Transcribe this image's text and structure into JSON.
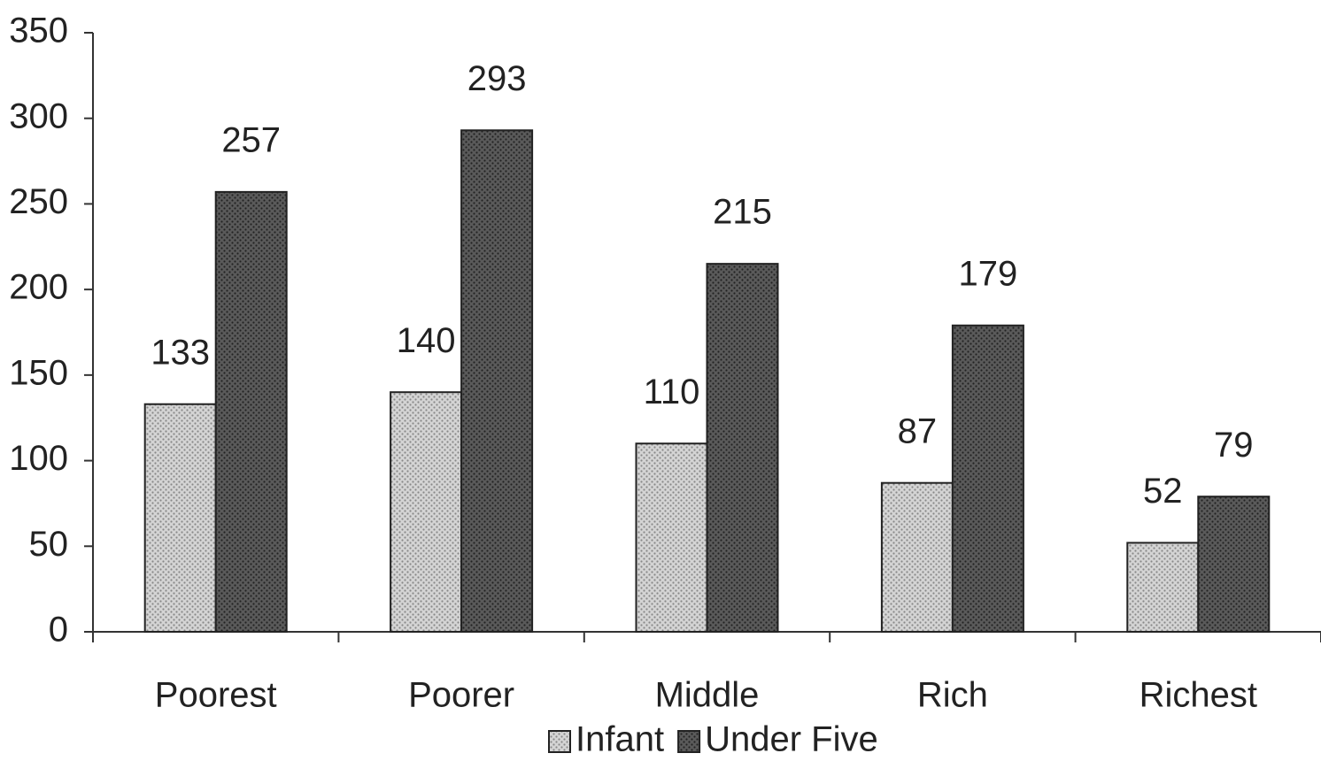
{
  "chart_data": {
    "type": "bar",
    "categories": [
      "Poorest",
      "Poorer",
      "Middle",
      "Rich",
      "Richest"
    ],
    "series": [
      {
        "name": "Infant",
        "color": "#d4d4d4",
        "values": [
          133,
          140,
          110,
          87,
          52
        ]
      },
      {
        "name": "Under Five",
        "color": "#5a5a5a",
        "values": [
          257,
          293,
          215,
          179,
          79
        ]
      }
    ],
    "ylim": [
      0,
      350
    ],
    "yticks": [
      0,
      50,
      100,
      150,
      200,
      250,
      300,
      350
    ],
    "grid": false,
    "legend": "bottom"
  }
}
